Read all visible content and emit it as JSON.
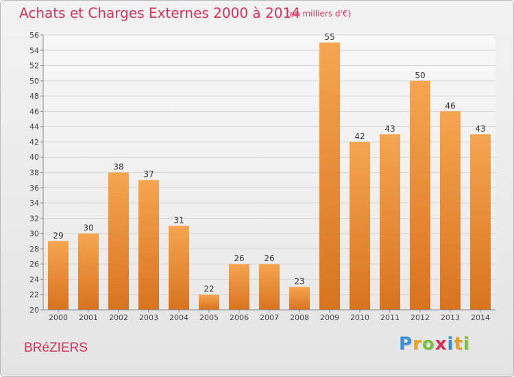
{
  "title": "Achats et Charges Externes 2000 à 2014",
  "subtitle": "(en milliers d'€)",
  "commune": "BRéZIERS",
  "logo": {
    "letters": [
      "P",
      "r",
      "o",
      "x",
      "i",
      "t",
      "i"
    ],
    "colors": [
      "#3b8fd6",
      "#e8a020",
      "#7fbf3f",
      "#d8325a",
      "#3b8fd6",
      "#e8a020",
      "#7fbf3f"
    ]
  },
  "chart_data": {
    "type": "bar",
    "categories": [
      "2000",
      "2001",
      "2002",
      "2003",
      "2004",
      "2005",
      "2006",
      "2007",
      "2008",
      "2009",
      "2010",
      "2011",
      "2012",
      "2013",
      "2014"
    ],
    "values": [
      29,
      30,
      38,
      37,
      31,
      22,
      26,
      26,
      23,
      55,
      42,
      43,
      50,
      46,
      43
    ],
    "title": "Achats et Charges Externes 2000 à 2014",
    "xlabel": "",
    "ylabel": "",
    "ylim": [
      20,
      56
    ],
    "yticks": [
      20,
      22,
      24,
      26,
      28,
      30,
      32,
      34,
      36,
      38,
      40,
      42,
      44,
      46,
      48,
      50,
      52,
      54,
      56
    ],
    "grid": true,
    "bar_color": "#f0913a"
  }
}
